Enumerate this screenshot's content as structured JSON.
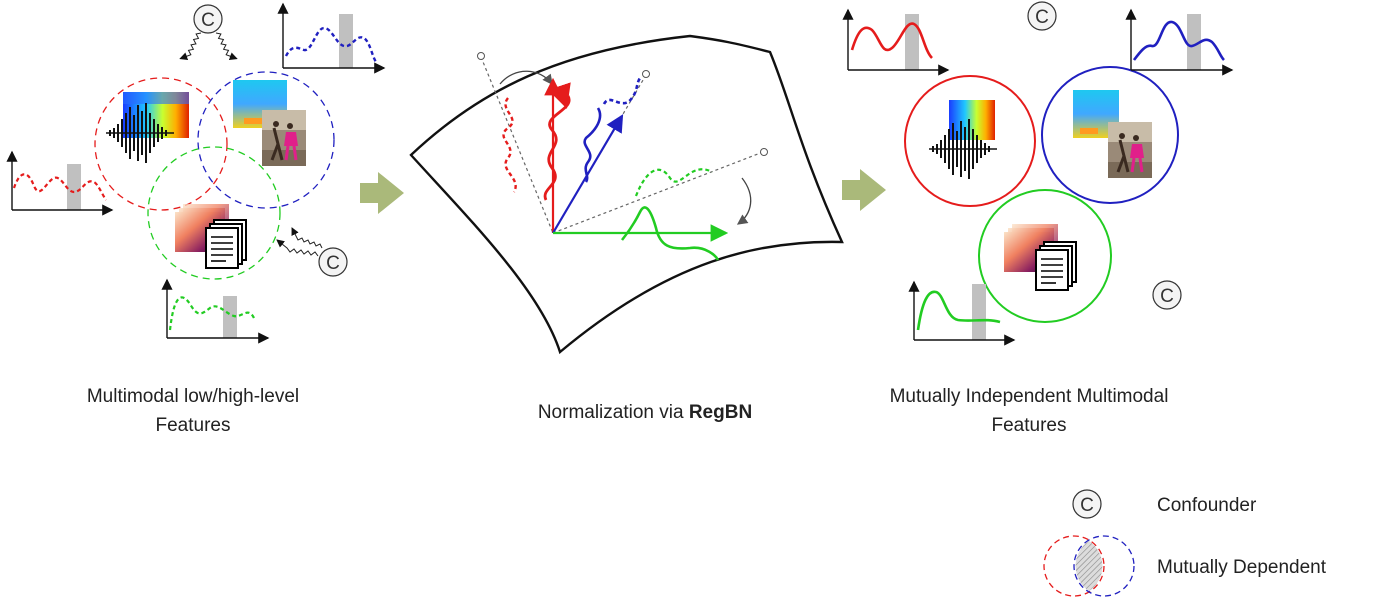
{
  "left_panel": {
    "caption_line1": "Multimodal low/high-level",
    "caption_line2": "Features"
  },
  "middle_panel": {
    "caption_prefix": "Normalization via ",
    "caption_method": "RegBN"
  },
  "right_panel": {
    "caption_line1": "Mutually Independent Multimodal",
    "caption_line2": "Features"
  },
  "legend": {
    "confounder_symbol": "C",
    "confounder_label": "Confounder",
    "dependent_label": "Mutually Dependent"
  },
  "confounder_symbol": "C",
  "colors": {
    "audio": "#e51c1c",
    "video": "#2020c0",
    "text": "#22cc22",
    "arrow": "#aab97a",
    "shaded_bar": "#c0c0c0"
  }
}
